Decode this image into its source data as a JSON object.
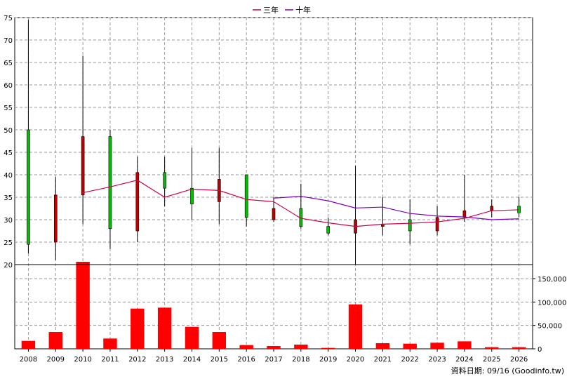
{
  "chart_data": {
    "type": "candlestick",
    "years": [
      "2008",
      "2009",
      "2010",
      "2011",
      "2012",
      "2013",
      "2014",
      "2015",
      "2016",
      "2017",
      "2018",
      "2019",
      "2020",
      "2021",
      "2022",
      "2023",
      "2024",
      "2025",
      "2026"
    ],
    "price_axis": {
      "ylim": [
        20,
        75
      ],
      "ticks": [
        "20",
        "25",
        "30",
        "35",
        "40",
        "45",
        "50",
        "55",
        "60",
        "65",
        "70",
        "75"
      ]
    },
    "volume_axis": {
      "ylim": [
        0,
        180000
      ],
      "ticks": [
        "0",
        "50,000",
        "100,000",
        "150,000"
      ]
    },
    "candles": [
      {
        "year": "2008",
        "open": 24.5,
        "high": 74.5,
        "low": 22.5,
        "close": 50,
        "color": "#00c000"
      },
      {
        "year": "2009",
        "open": 35.5,
        "high": 39.5,
        "low": 21,
        "close": 25,
        "color": "#c00000"
      },
      {
        "year": "2010",
        "open": 35.5,
        "high": 66.5,
        "low": 29,
        "close": 48.5,
        "color": "#c00000"
      },
      {
        "year": "2011",
        "open": 28,
        "high": 50,
        "low": 23.5,
        "close": 48.5,
        "color": "#00c000"
      },
      {
        "year": "2012",
        "open": 27.5,
        "high": 44,
        "low": 25,
        "close": 40.5,
        "color": "#c00000"
      },
      {
        "year": "2013",
        "open": 37,
        "high": 44,
        "low": 33,
        "close": 40.5,
        "color": "#00c000"
      },
      {
        "year": "2014",
        "open": 33.5,
        "high": 46,
        "low": 30,
        "close": 37,
        "color": "#00c000"
      },
      {
        "year": "2015",
        "open": 34,
        "high": 46,
        "low": 29,
        "close": 39,
        "color": "#c00000"
      },
      {
        "year": "2016",
        "open": 30.5,
        "high": 40,
        "low": 28.5,
        "close": 40,
        "color": "#00c000"
      },
      {
        "year": "2017",
        "open": 30,
        "high": 35,
        "low": 29.5,
        "close": 32.5,
        "color": "#c00000"
      },
      {
        "year": "2018",
        "open": 28.5,
        "high": 38,
        "low": 28,
        "close": 32.5,
        "color": "#00c000"
      },
      {
        "year": "2019",
        "open": 27,
        "high": 30.5,
        "low": 26.5,
        "close": 28.5,
        "color": "#00c000"
      },
      {
        "year": "2020",
        "open": 27,
        "high": 42,
        "low": 20,
        "close": 30,
        "color": "#c00000"
      },
      {
        "year": "2021",
        "open": 28.5,
        "high": 35,
        "low": 26.5,
        "close": 29,
        "color": "#c00000"
      },
      {
        "year": "2022",
        "open": 27.5,
        "high": 34.5,
        "low": 24.5,
        "close": 30,
        "color": "#00c000"
      },
      {
        "year": "2023",
        "open": 27.5,
        "high": 33,
        "low": 26.5,
        "close": 30.5,
        "color": "#c00000"
      },
      {
        "year": "2024",
        "open": 30.5,
        "high": 40,
        "low": 29.5,
        "close": 32,
        "color": "#c00000"
      },
      {
        "year": "2025",
        "open": 32,
        "high": 34.5,
        "low": 30.5,
        "close": 33,
        "color": "#c00000"
      },
      {
        "year": "2026",
        "open": 31.5,
        "high": 35,
        "low": 30.5,
        "close": 33,
        "color": "#00c000"
      }
    ],
    "volume": [
      17000,
      36000,
      186000,
      22000,
      86000,
      88000,
      47000,
      36000,
      8000,
      6000,
      9000,
      2000,
      95000,
      12000,
      11000,
      13000,
      16000,
      3500,
      3500
    ],
    "series": [
      {
        "name": "三年",
        "color": "#d0004c",
        "points": [
          [
            "2010",
            36
          ],
          [
            "2011",
            37.3
          ],
          [
            "2012",
            38.8
          ],
          [
            "2013",
            35
          ],
          [
            "2014",
            36.8
          ],
          [
            "2015",
            36.5
          ],
          [
            "2016",
            34.5
          ],
          [
            "2017",
            34
          ],
          [
            "2018",
            30.3
          ],
          [
            "2019",
            29.3
          ],
          [
            "2020",
            28.5
          ],
          [
            "2021",
            29
          ],
          [
            "2022",
            29.2
          ],
          [
            "2023",
            29.5
          ],
          [
            "2024",
            30.3
          ],
          [
            "2025",
            32
          ],
          [
            "2026",
            32.2
          ]
        ]
      },
      {
        "name": "十年",
        "color": "#7a00c8",
        "points": [
          [
            "2017",
            34.8
          ],
          [
            "2018",
            35.2
          ],
          [
            "2019",
            34.2
          ],
          [
            "2020",
            32.6
          ],
          [
            "2021",
            32.8
          ],
          [
            "2022",
            31.4
          ],
          [
            "2023",
            30.8
          ],
          [
            "2024",
            30.6
          ],
          [
            "2025",
            30
          ],
          [
            "2026",
            30.2
          ]
        ]
      }
    ],
    "grid": true,
    "legend_position": "top-center"
  },
  "footer": "資料日期: 09/16 (Goodinfo.tw)"
}
